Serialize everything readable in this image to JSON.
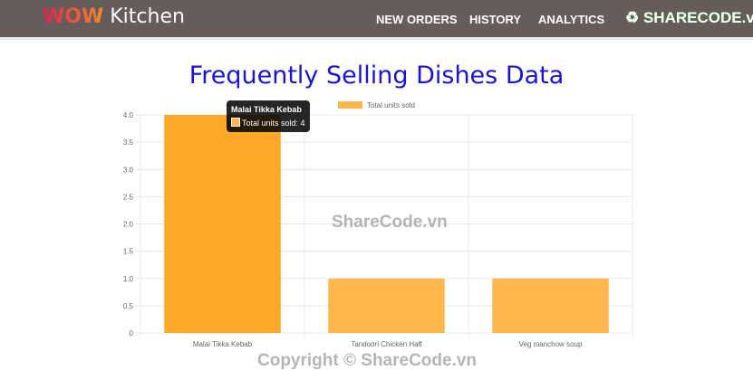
{
  "nav": {
    "brand_accent": "WOW",
    "brand_rest": " Kitchen",
    "items": [
      "NEW ORDERS",
      "HISTORY",
      "ANALYTICS"
    ]
  },
  "page_title": "Frequently Selling Dishes Data",
  "watermarks": {
    "logo": "SHARECODE.vn",
    "center": "ShareCode.vn",
    "footer": "Copyright © ShareCode.vn"
  },
  "tooltip": {
    "title": "Malai Tikka Kebab",
    "body": "Total units sold: 4"
  },
  "chart_data": {
    "type": "bar",
    "categories": [
      "Malai Tikka Kebab",
      "Tandoori Chicken Half",
      "Veg manchow soup"
    ],
    "series": [
      {
        "name": "Total units sold",
        "values": [
          4,
          1,
          1
        ],
        "color": "#ffb74d",
        "hover_color": "#ffa726"
      }
    ],
    "ylim": [
      0,
      4
    ],
    "yticks": [
      "0",
      "0.5",
      "1.0",
      "1.5",
      "2.0",
      "2.5",
      "3.0",
      "3.5",
      "4.0"
    ],
    "grid": true,
    "legend": "top",
    "highlighted": "Malai Tikka Kebab"
  }
}
